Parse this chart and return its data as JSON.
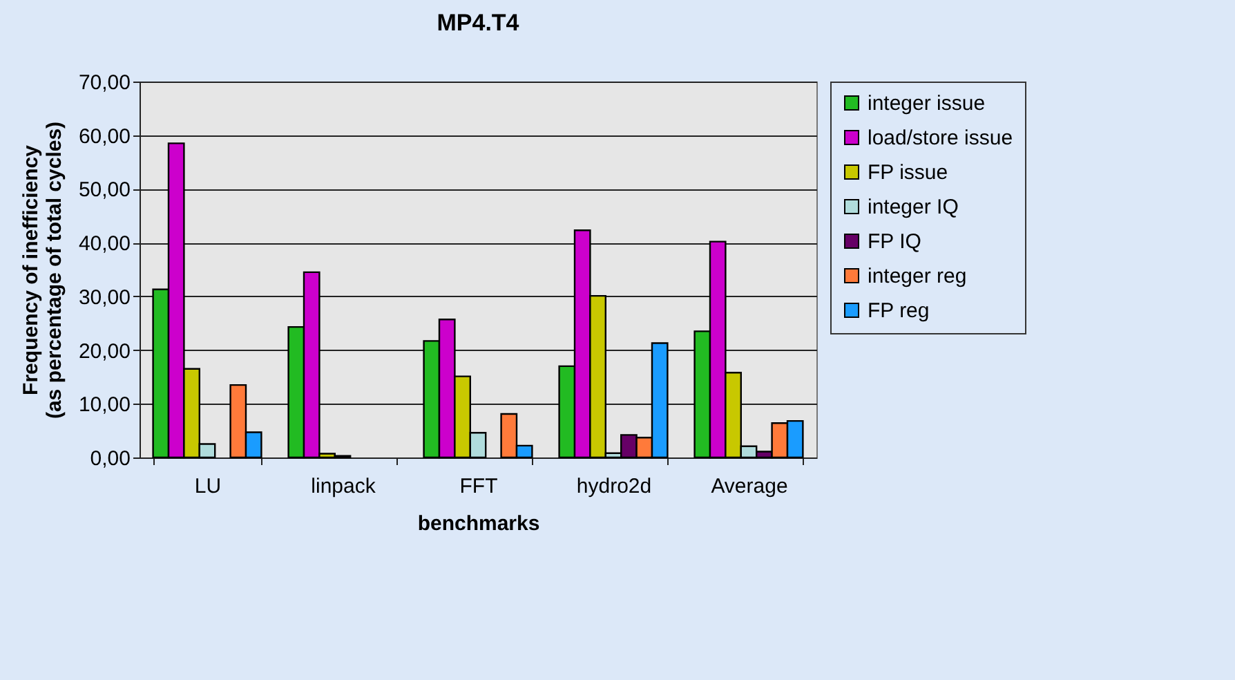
{
  "chart_data": {
    "type": "bar",
    "title": "MP4.T4",
    "xlabel": "benchmarks",
    "ylabel": "Frequency of inefficiency (as percentage of total cycles)",
    "categories": [
      "LU",
      "linpack",
      "FFT",
      "hydro2d",
      "Average"
    ],
    "series": [
      {
        "name": "integer issue",
        "color": "#22bb22",
        "values": [
          31.3,
          24.3,
          21.7,
          17.0,
          23.5
        ]
      },
      {
        "name": "load/store issue",
        "color": "#cc00cc",
        "values": [
          58.5,
          34.5,
          25.7,
          42.3,
          40.2
        ]
      },
      {
        "name": "FP issue",
        "color": "#c8c800",
        "values": [
          16.5,
          0.7,
          15.1,
          30.1,
          15.8
        ]
      },
      {
        "name": "integer IQ",
        "color": "#b0dcdc",
        "values": [
          2.5,
          0.3,
          4.6,
          0.8,
          2.1
        ]
      },
      {
        "name": "FP IQ",
        "color": "#660066",
        "values": [
          null,
          null,
          null,
          4.2,
          1.1
        ]
      },
      {
        "name": "integer reg",
        "color": "#ff7a3a",
        "values": [
          13.5,
          null,
          8.1,
          3.7,
          6.4
        ]
      },
      {
        "name": "FP reg",
        "color": "#1a9cff",
        "values": [
          4.7,
          null,
          2.2,
          21.3,
          6.8
        ]
      }
    ],
    "ylim": [
      0,
      70
    ],
    "yticks": [
      {
        "value": 0,
        "label": "0,00"
      },
      {
        "value": 10,
        "label": "10,00"
      },
      {
        "value": 20,
        "label": "20,00"
      },
      {
        "value": 30,
        "label": "30,00"
      },
      {
        "value": 40,
        "label": "40,00"
      },
      {
        "value": 50,
        "label": "50,00"
      },
      {
        "value": 60,
        "label": "60,00"
      },
      {
        "value": 70,
        "label": "70,00"
      }
    ],
    "grid": "y",
    "legend": "right"
  }
}
